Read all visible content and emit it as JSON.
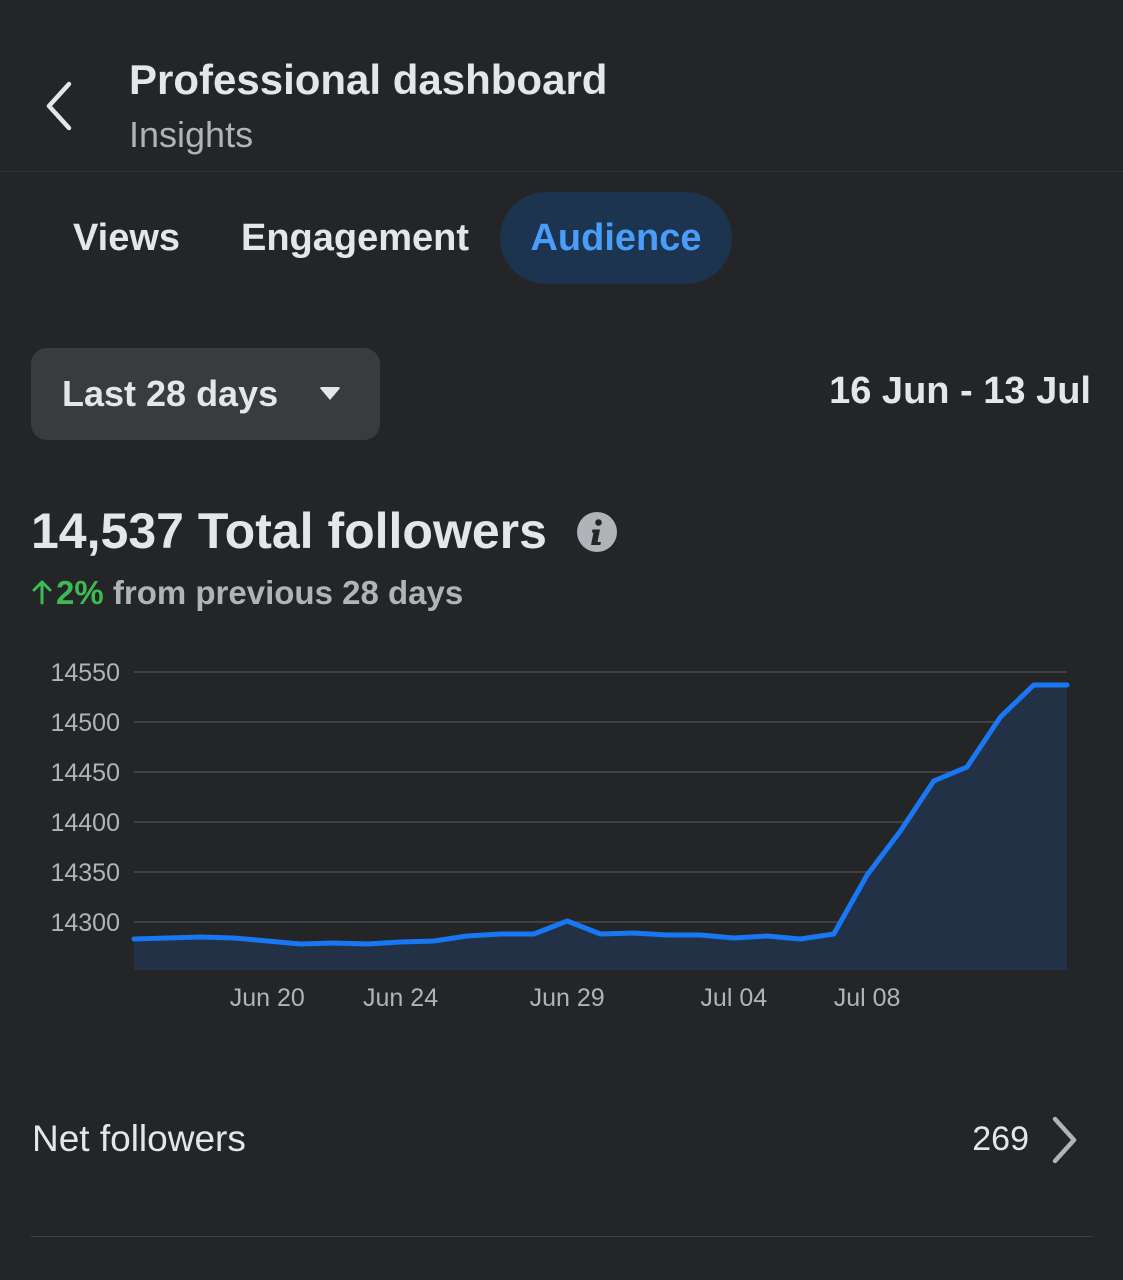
{
  "header": {
    "back_icon": "chevron-left-icon",
    "title": "Professional dashboard",
    "subtitle": "Insights"
  },
  "tabs": [
    {
      "label": "Views",
      "active": false
    },
    {
      "label": "Engagement",
      "active": false
    },
    {
      "label": "Audience",
      "active": true
    }
  ],
  "range": {
    "selected": "Last 28 days",
    "dates": "16 Jun - 13 Jul"
  },
  "summary": {
    "total_value": "14,537",
    "total_label": "Total followers",
    "change_percent": "2%",
    "change_text": "from previous 28 days",
    "info_icon": "info-icon"
  },
  "colors": {
    "accent": "#1877f2",
    "active_tab_bg": "#1d3450",
    "active_tab_text": "#4a9df8",
    "positive": "#3cba54"
  },
  "chart_data": {
    "type": "area",
    "x": [
      "Jun 16",
      "Jun 17",
      "Jun 18",
      "Jun 19",
      "Jun 20",
      "Jun 21",
      "Jun 22",
      "Jun 23",
      "Jun 24",
      "Jun 25",
      "Jun 26",
      "Jun 27",
      "Jun 28",
      "Jun 29",
      "Jun 30",
      "Jul 01",
      "Jul 02",
      "Jul 03",
      "Jul 04",
      "Jul 05",
      "Jul 06",
      "Jul 07",
      "Jul 08",
      "Jul 09",
      "Jul 10",
      "Jul 11",
      "Jul 12",
      "Jul 13",
      "Jul 14"
    ],
    "values": [
      14283,
      14284,
      14285,
      14284,
      14281,
      14278,
      14279,
      14278,
      14280,
      14281,
      14286,
      14288,
      14288,
      14301,
      14288,
      14289,
      14287,
      14287,
      14284,
      14286,
      14283,
      14288,
      14347,
      14391,
      14441,
      14455,
      14505,
      14537,
      14537
    ],
    "x_tick_labels": [
      "Jun 20",
      "Jun 24",
      "Jun 29",
      "Jul 04",
      "Jul 08"
    ],
    "x_tick_dates": [
      "Jun 20",
      "Jun 24",
      "Jun 29",
      "Jul 04",
      "Jul 08"
    ],
    "y_ticks": [
      14550,
      14500,
      14450,
      14400,
      14350,
      14300
    ],
    "ylim": [
      14252,
      14550
    ],
    "grid": true,
    "title": "",
    "xlabel": "",
    "ylabel": ""
  },
  "net_followers": {
    "label": "Net followers",
    "value": "269",
    "chevron_icon": "chevron-right-icon"
  }
}
